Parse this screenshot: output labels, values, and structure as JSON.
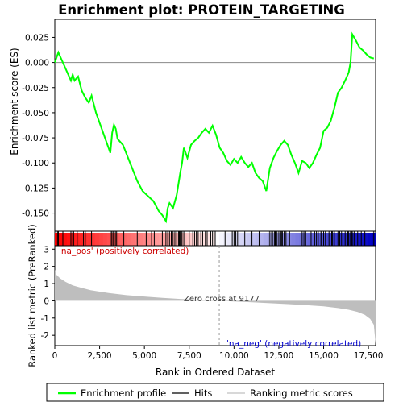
{
  "chart_data": {
    "type": "line",
    "title": "Enrichment plot: PROTEIN_TARGETING",
    "xlabel": "Rank in Ordered Dataset",
    "top_panel": {
      "ylabel": "Enrichment score (ES)",
      "ylim": [
        -0.168,
        0.043
      ],
      "yticks": [
        0.025,
        0.0,
        -0.025,
        -0.05,
        -0.075,
        -0.1,
        -0.125,
        -0.15
      ],
      "ytick_labels": [
        "0.025",
        "0.000",
        "-0.025",
        "-0.050",
        "-0.075",
        "-0.100",
        "-0.125",
        "-0.150"
      ],
      "grid": false,
      "series": [
        {
          "name": "Enrichment profile",
          "color": "#00ff00",
          "x": [
            0,
            200,
            500,
            900,
            1000,
            1100,
            1300,
            1500,
            1700,
            1900,
            2050,
            2300,
            2700,
            3100,
            3200,
            3300,
            3400,
            3500,
            3800,
            4200,
            4600,
            4900,
            5200,
            5500,
            5800,
            6000,
            6200,
            6300,
            6400,
            6600,
            6800,
            7000,
            7100,
            7200,
            7400,
            7600,
            7800,
            8000,
            8200,
            8400,
            8600,
            8800,
            9000,
            9200,
            9400,
            9600,
            9800,
            10000,
            10200,
            10400,
            10600,
            10800,
            11000,
            11200,
            11400,
            11600,
            11800,
            12000,
            12200,
            12400,
            12600,
            12800,
            13000,
            13200,
            13400,
            13600,
            13800,
            14000,
            14200,
            14400,
            14600,
            14800,
            15000,
            15200,
            15400,
            15600,
            15800,
            16000,
            16200,
            16400,
            16500,
            16600,
            16800,
            17000,
            17200,
            17400,
            17600,
            17800
          ],
          "y": [
            0.0,
            0.01,
            -0.002,
            -0.018,
            -0.012,
            -0.018,
            -0.014,
            -0.028,
            -0.035,
            -0.04,
            -0.033,
            -0.05,
            -0.07,
            -0.09,
            -0.07,
            -0.062,
            -0.066,
            -0.076,
            -0.082,
            -0.1,
            -0.118,
            -0.128,
            -0.133,
            -0.138,
            -0.148,
            -0.152,
            -0.158,
            -0.145,
            -0.14,
            -0.145,
            -0.132,
            -0.11,
            -0.1,
            -0.085,
            -0.095,
            -0.082,
            -0.078,
            -0.075,
            -0.07,
            -0.066,
            -0.07,
            -0.063,
            -0.072,
            -0.085,
            -0.09,
            -0.098,
            -0.102,
            -0.096,
            -0.1,
            -0.094,
            -0.1,
            -0.104,
            -0.1,
            -0.11,
            -0.115,
            -0.118,
            -0.128,
            -0.105,
            -0.095,
            -0.088,
            -0.082,
            -0.078,
            -0.082,
            -0.092,
            -0.1,
            -0.11,
            -0.098,
            -0.1,
            -0.105,
            -0.1,
            -0.092,
            -0.085,
            -0.068,
            -0.065,
            -0.058,
            -0.045,
            -0.03,
            -0.025,
            -0.018,
            -0.01,
            0.0,
            0.028,
            0.022,
            0.015,
            0.012,
            0.008,
            0.005,
            0.004
          ]
        }
      ]
    },
    "hits_panel": {
      "name": "Hits",
      "hit_ranks": [
        150,
        200,
        450,
        900,
        1000,
        1050,
        1250,
        1600,
        1700,
        2050,
        3100,
        3180,
        3250,
        3380,
        3450,
        3850,
        4600,
        5100,
        5400,
        5550,
        6000,
        6200,
        6300,
        6400,
        6500,
        6600,
        6700,
        6800,
        6900,
        6950,
        7000,
        7050,
        7100,
        7200,
        7500,
        7700,
        7800,
        7900,
        8000,
        8150,
        8250,
        8400,
        8500,
        8700,
        8800,
        8950,
        9500,
        9900,
        10000,
        10100,
        10200,
        10600,
        10950,
        11000,
        11400,
        11900,
        12000,
        12100,
        12150,
        12250,
        12300,
        12400,
        12500,
        12600,
        12650,
        12700,
        12800,
        12900,
        13100,
        13800,
        13900,
        14000,
        14300,
        14500,
        14600,
        14700,
        14850,
        14900,
        15000,
        15100,
        15300,
        15450,
        15500,
        15600,
        15800,
        15900,
        16000,
        16200,
        16350,
        16400,
        16500,
        16550,
        16600,
        16700,
        16900,
        17100,
        17300,
        17700,
        17800
      ]
    },
    "rank_metric_panel": {
      "ylabel": "Ranked list metric (PreRanked)",
      "ylim": [
        -2.6,
        3.2
      ],
      "yticks": [
        3,
        2,
        1,
        0,
        -1,
        -2
      ],
      "ytick_labels": [
        "3",
        "2",
        "1",
        "0",
        "-1",
        "-2"
      ],
      "x": [
        0,
        100,
        300,
        600,
        1000,
        1500,
        2000,
        3000,
        4000,
        5000,
        6000,
        7000,
        8000,
        9177,
        10000,
        11000,
        12000,
        13000,
        14000,
        15000,
        15800,
        16400,
        16900,
        17300,
        17600,
        17800,
        17900
      ],
      "values": [
        1.8,
        1.5,
        1.3,
        1.1,
        0.9,
        0.75,
        0.62,
        0.45,
        0.33,
        0.25,
        0.17,
        0.11,
        0.06,
        0.0,
        -0.04,
        -0.09,
        -0.14,
        -0.19,
        -0.25,
        -0.32,
        -0.42,
        -0.52,
        -0.65,
        -0.82,
        -1.05,
        -1.4,
        -2.5
      ],
      "zero_cross_label": "Zero cross at 9177",
      "zero_cross_rank": 9177,
      "pos_label": "'na_pos' (positively correlated)",
      "neg_label": "'na_neg' (negatively correlated)",
      "pos_label_color": "#cc0000",
      "neg_label_color": "#0000cc"
    },
    "x_axis": {
      "xlim": [
        0,
        17900
      ],
      "xticks": [
        0,
        2500,
        5000,
        7500,
        10000,
        12500,
        15000,
        17500
      ],
      "xtick_labels": [
        "0",
        "2,500",
        "5,000",
        "7,500",
        "10,000",
        "12,500",
        "15,000",
        "17,500"
      ]
    },
    "legend": {
      "placement": "bottom",
      "items": [
        {
          "label": "Enrichment profile",
          "color": "#00ff00"
        },
        {
          "label": "Hits",
          "color": "#000000"
        },
        {
          "label": "Ranking metric scores",
          "color": "#c0c0c0"
        }
      ]
    }
  }
}
